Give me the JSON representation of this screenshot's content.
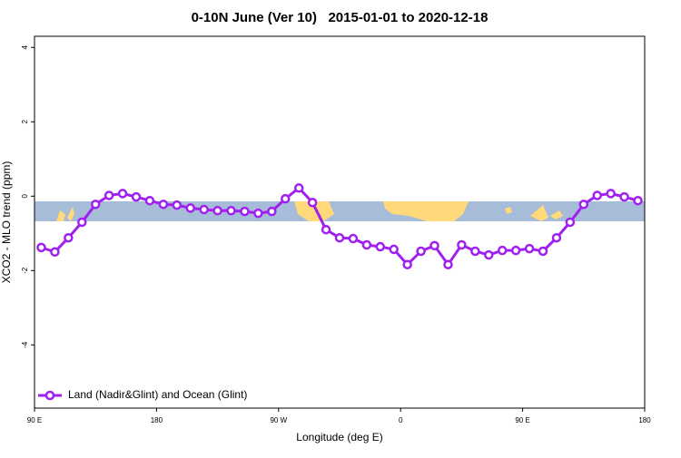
{
  "chart_data": {
    "type": "line",
    "title": "0-10N June (Ver 10)   2015-01-01 to 2020-12-18",
    "xlabel": "Longitude (deg E)",
    "ylabel": "XCO2 - MLO trend (ppm)",
    "x": [
      95,
      105,
      115,
      125,
      135,
      145,
      155,
      165,
      175,
      185,
      195,
      205,
      215,
      225,
      235,
      245,
      255,
      265,
      275,
      285,
      295,
      305,
      315,
      325,
      335,
      345,
      355,
      365,
      375,
      385,
      395,
      405,
      415,
      425,
      435,
      445,
      455,
      465,
      475,
      485,
      495,
      505,
      515,
      525,
      535
    ],
    "series": [
      {
        "name": "Land (Nadir&Glint) and Ocean (Glint)",
        "color": "#a020f0",
        "values": [
          -1.38,
          -1.5,
          -1.12,
          -0.7,
          -0.22,
          0.02,
          0.07,
          -0.02,
          -0.12,
          -0.22,
          -0.24,
          -0.32,
          -0.36,
          -0.39,
          -0.39,
          -0.41,
          -0.46,
          -0.41,
          -0.07,
          0.22,
          -0.17,
          -0.9,
          -1.12,
          -1.14,
          -1.31,
          -1.36,
          -1.43,
          -1.84,
          -1.48,
          -1.33,
          -1.84,
          -1.31,
          -1.48,
          -1.58,
          -1.46,
          -1.46,
          -1.41,
          -1.48,
          -1.12,
          -0.7,
          -0.22,
          0.02,
          0.07,
          -0.02,
          -0.12
        ]
      }
    ],
    "xlim": [
      90,
      540
    ],
    "xticks": [
      {
        "value": 90,
        "label": "90 E"
      },
      180,
      {
        "value": 270,
        "label": "90 W"
      },
      {
        "value": 360,
        "label": "0"
      },
      {
        "value": 450,
        "label": "90 E"
      },
      {
        "value": 540,
        "label": "180"
      }
    ],
    "ylim": [
      -5.7,
      4.3
    ],
    "yticks": [
      -4,
      -2,
      0,
      2,
      4
    ],
    "legend": "bottom-left"
  }
}
